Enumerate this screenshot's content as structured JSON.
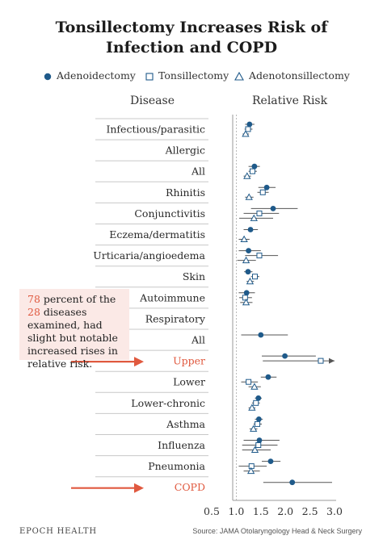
{
  "title": {
    "line1": "Tonsillectomy Increases Risk of",
    "line2": "Infection and COPD"
  },
  "legend": {
    "adenoidectomy": "Adenoidectomy",
    "tonsillectomy": "Tonsillectomy",
    "adenotonsillectomy": "Adenotonsillectomy"
  },
  "columns": {
    "disease": "Disease",
    "relative_risk": "Relative Risk"
  },
  "colors": {
    "marker": "#1f5a8a",
    "accent": "#e0593f",
    "error_bar": "#555555",
    "rule": "#c8c8c8",
    "callout_bg": "#fbe9e6"
  },
  "callout": {
    "prefix_num": "78",
    "mid1": " percent of the ",
    "mid_num": "28",
    "rest": " diseases examined, had slight but notable increased rises in relative risk."
  },
  "footer": {
    "brand": "EPOCH HEALTH",
    "source": "Source: JAMA Otolaryngology Head & Neck Surgery"
  },
  "chart_data": {
    "type": "scatter",
    "xlim": [
      0.5,
      3.0
    ],
    "xticks": [
      "0.5",
      "1.0",
      "1.5",
      "2.0",
      "2.5",
      "3.0"
    ],
    "xlabel": "",
    "ylabel": "Disease",
    "series_names": [
      "Adenoidectomy",
      "Tonsillectomy",
      "Adenotonsillectomy"
    ],
    "rows": [
      {
        "label": "Infectious/parasitic",
        "highlight": false,
        "points": [
          {
            "series": "Adenoidectomy",
            "value": 1.27,
            "lo": 1.18,
            "hi": 1.37
          },
          {
            "series": "Tonsillectomy",
            "value": 1.24,
            "lo": 1.17,
            "hi": 1.33
          },
          {
            "series": "Adenotonsillectomy",
            "value": 1.19,
            "lo": 1.13,
            "hi": 1.26
          }
        ]
      },
      {
        "label": "Allergic",
        "highlight": false,
        "points": []
      },
      {
        "label": "All",
        "highlight": false,
        "points": [
          {
            "series": "Adenoidectomy",
            "value": 1.37,
            "lo": 1.25,
            "hi": 1.48
          },
          {
            "series": "Tonsillectomy",
            "value": 1.33,
            "lo": 1.25,
            "hi": 1.42
          },
          {
            "series": "Adenotonsillectomy",
            "value": 1.22,
            "lo": 1.15,
            "hi": 1.3
          }
        ]
      },
      {
        "label": "Rhinitis",
        "highlight": false,
        "points": [
          {
            "series": "Adenoidectomy",
            "value": 1.62,
            "lo": 1.45,
            "hi": 1.8
          },
          {
            "series": "Tonsillectomy",
            "value": 1.54,
            "lo": 1.43,
            "hi": 1.66
          },
          {
            "series": "Adenotonsillectomy",
            "value": 1.26,
            "lo": 1.18,
            "hi": 1.35
          }
        ]
      },
      {
        "label": "Conjunctivitis",
        "highlight": false,
        "points": [
          {
            "series": "Adenoidectomy",
            "value": 1.75,
            "lo": 1.3,
            "hi": 2.25
          },
          {
            "series": "Tonsillectomy",
            "value": 1.47,
            "lo": 1.15,
            "hi": 1.87
          },
          {
            "series": "Adenotonsillectomy",
            "value": 1.36,
            "lo": 1.06,
            "hi": 1.75
          }
        ]
      },
      {
        "label": "Eczema/dermatitis",
        "highlight": false,
        "points": [
          {
            "series": "Adenoidectomy",
            "value": 1.29,
            "lo": 1.15,
            "hi": 1.44
          },
          {
            "series": "Adenotonsillectomy",
            "value": 1.16,
            "lo": 1.05,
            "hi": 1.27
          }
        ]
      },
      {
        "label": "Urticaria/angioedema",
        "highlight": false,
        "points": [
          {
            "series": "Adenoidectomy",
            "value": 1.25,
            "lo": 1.05,
            "hi": 1.5
          },
          {
            "series": "Tonsillectomy",
            "value": 1.47,
            "lo": 1.18,
            "hi": 1.85
          },
          {
            "series": "Adenotonsillectomy",
            "value": 1.2,
            "lo": 1.02,
            "hi": 1.4
          }
        ]
      },
      {
        "label": "Skin",
        "highlight": false,
        "points": [
          {
            "series": "Adenoidectomy",
            "value": 1.24,
            "lo": 1.16,
            "hi": 1.33
          },
          {
            "series": "Tonsillectomy",
            "value": 1.38,
            "lo": 1.3,
            "hi": 1.47
          },
          {
            "series": "Adenotonsillectomy",
            "value": 1.28,
            "lo": 1.21,
            "hi": 1.36
          }
        ]
      },
      {
        "label": "Autoimmune",
        "highlight": false,
        "points": [
          {
            "series": "Adenoidectomy",
            "value": 1.21,
            "lo": 1.05,
            "hi": 1.38
          },
          {
            "series": "Tonsillectomy",
            "value": 1.18,
            "lo": 1.06,
            "hi": 1.32
          },
          {
            "series": "Adenotonsillectomy",
            "value": 1.2,
            "lo": 1.08,
            "hi": 1.33
          }
        ]
      },
      {
        "label": "Respiratory",
        "highlight": false,
        "points": []
      },
      {
        "label": "All",
        "highlight": false,
        "points": [
          {
            "series": "Adenoidectomy",
            "value": 1.5,
            "lo": 1.1,
            "hi": 2.05
          }
        ]
      },
      {
        "label": "Upper",
        "highlight": true,
        "points": [
          {
            "series": "Adenoidectomy",
            "value": 1.99,
            "lo": 1.52,
            "hi": 2.62
          },
          {
            "series": "Tonsillectomy",
            "value": 2.72,
            "lo": 1.54,
            "hi": 3.0,
            "hi_open": true
          }
        ]
      },
      {
        "label": "Lower",
        "highlight": false,
        "points": [
          {
            "series": "Adenoidectomy",
            "value": 1.65,
            "lo": 1.5,
            "hi": 1.82
          },
          {
            "series": "Tonsillectomy",
            "value": 1.25,
            "lo": 1.1,
            "hi": 1.44
          },
          {
            "series": "Adenotonsillectomy",
            "value": 1.37,
            "lo": 1.25,
            "hi": 1.5
          }
        ]
      },
      {
        "label": "Lower-chronic",
        "highlight": false,
        "points": [
          {
            "series": "Adenoidectomy",
            "value": 1.45,
            "lo": 1.38,
            "hi": 1.52
          },
          {
            "series": "Tonsillectomy",
            "value": 1.4,
            "lo": 1.32,
            "hi": 1.48
          },
          {
            "series": "Adenotonsillectomy",
            "value": 1.32,
            "lo": 1.25,
            "hi": 1.39
          }
        ]
      },
      {
        "label": "Asthma",
        "highlight": false,
        "points": [
          {
            "series": "Adenoidectomy",
            "value": 1.46,
            "lo": 1.38,
            "hi": 1.54
          },
          {
            "series": "Tonsillectomy",
            "value": 1.43,
            "lo": 1.35,
            "hi": 1.52
          },
          {
            "series": "Adenotonsillectomy",
            "value": 1.35,
            "lo": 1.27,
            "hi": 1.43
          }
        ]
      },
      {
        "label": "Influenza",
        "highlight": false,
        "points": [
          {
            "series": "Adenoidectomy",
            "value": 1.47,
            "lo": 1.15,
            "hi": 1.88
          },
          {
            "series": "Tonsillectomy",
            "value": 1.45,
            "lo": 1.12,
            "hi": 1.84
          },
          {
            "series": "Adenotonsillectomy",
            "value": 1.38,
            "lo": 1.12,
            "hi": 1.7
          }
        ]
      },
      {
        "label": "Pneumonia",
        "highlight": false,
        "points": [
          {
            "series": "Adenoidectomy",
            "value": 1.7,
            "lo": 1.52,
            "hi": 1.9
          },
          {
            "series": "Tonsillectomy",
            "value": 1.31,
            "lo": 1.05,
            "hi": 1.62
          },
          {
            "series": "Adenotonsillectomy",
            "value": 1.3,
            "lo": 1.15,
            "hi": 1.48
          }
        ]
      },
      {
        "label": "COPD",
        "highlight": true,
        "points": [
          {
            "series": "Adenoidectomy",
            "value": 2.14,
            "lo": 1.55,
            "hi": 2.95
          }
        ]
      }
    ]
  }
}
